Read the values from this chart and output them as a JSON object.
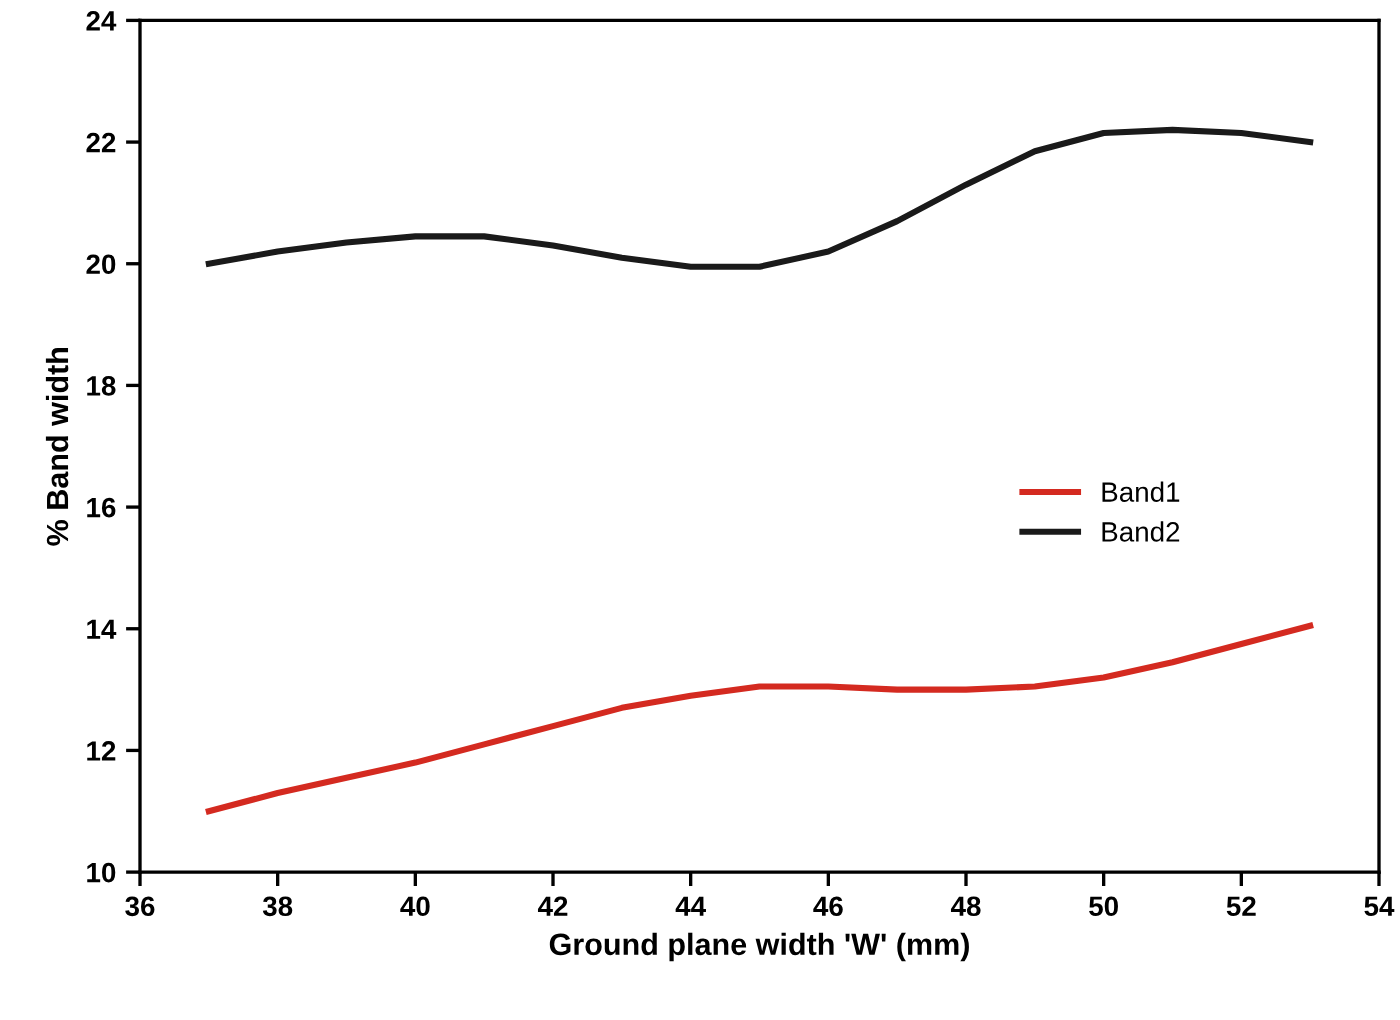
{
  "chart_data": {
    "type": "line",
    "xlabel": "Ground plane width 'W' (mm)",
    "ylabel": "% Band width",
    "x": [
      37,
      38,
      39,
      40,
      41,
      42,
      43,
      44,
      45,
      46,
      47,
      48,
      49,
      50,
      51,
      52,
      53
    ],
    "series": [
      {
        "name": "Band1",
        "color": "#d42a20",
        "values": [
          11.0,
          11.3,
          11.55,
          11.8,
          12.1,
          12.4,
          12.7,
          12.9,
          13.05,
          13.05,
          13.0,
          13.0,
          13.05,
          13.2,
          13.45,
          13.75,
          14.05
        ]
      },
      {
        "name": "Band2",
        "color": "#1a1a1a",
        "values": [
          20.0,
          20.2,
          20.35,
          20.45,
          20.45,
          20.3,
          20.1,
          19.95,
          19.95,
          20.2,
          20.7,
          21.3,
          21.85,
          22.15,
          22.2,
          22.15,
          22.0
        ]
      }
    ],
    "xlim": [
      36,
      54
    ],
    "xticks": [
      36,
      38,
      40,
      42,
      44,
      46,
      48,
      50,
      52,
      54
    ],
    "ylim": [
      10,
      24
    ],
    "yticks": [
      10,
      12,
      14,
      16,
      18,
      20,
      22,
      24
    ],
    "grid": false,
    "legend": "right",
    "marker": "none",
    "line_style": "solid"
  }
}
